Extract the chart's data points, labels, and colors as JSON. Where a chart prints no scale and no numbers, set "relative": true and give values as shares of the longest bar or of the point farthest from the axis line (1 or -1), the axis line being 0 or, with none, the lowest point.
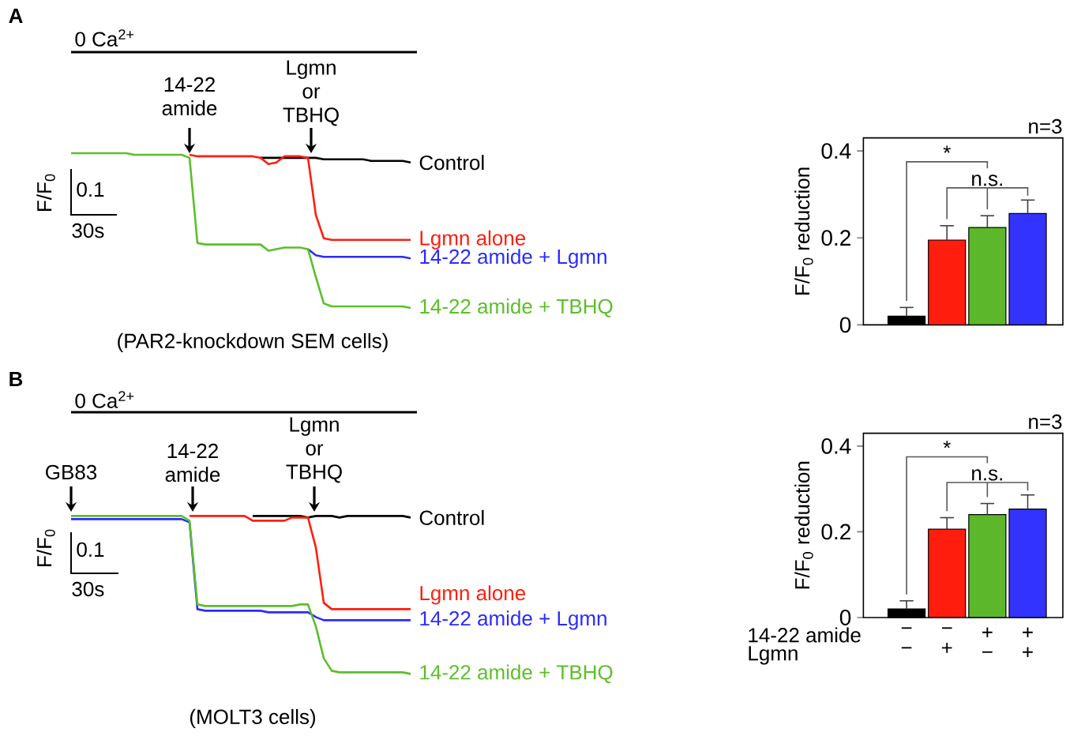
{
  "chart_data": [
    {
      "type": "line",
      "relative": true,
      "ylabel": "F/F$_{0}$",
      "categories": [
        null,
        null,
        null,
        null,
        null,
        null,
        null,
        null,
        null,
        null,
        null,
        null,
        null,
        null,
        null,
        null,
        null,
        null,
        null,
        null,
        null,
        null,
        null,
        null,
        null,
        null,
        null,
        null,
        null,
        null,
        null,
        null,
        null,
        null,
        null,
        null,
        null,
        null,
        null,
        null,
        null,
        null,
        null,
        null
      ],
      "series": [
        {
          "name": "Control",
          "color": "#000000",
          "values": [
            null,
            null,
            null,
            null,
            null,
            null,
            null,
            null,
            null,
            null,
            null,
            null,
            null,
            null,
            null,
            null,
            null,
            null,
            null,
            null,
            null,
            null,
            null,
            null,
            0.97,
            0.97,
            0.97,
            0.97,
            0.97,
            0.97,
            0.97,
            0.97,
            0.96,
            0.96,
            0.96,
            0.96,
            0.96,
            0.96,
            0.95,
            0.95,
            0.95,
            0.95,
            0.95,
            0.94
          ]
        },
        {
          "name": "Lgmn alone",
          "color": "#ff1e0e",
          "values": [
            null,
            null,
            null,
            null,
            null,
            null,
            null,
            null,
            null,
            null,
            null,
            null,
            null,
            null,
            null,
            0.99,
            0.98,
            0.98,
            0.98,
            0.98,
            0.98,
            0.98,
            0.98,
            0.98,
            0.97,
            0.93,
            0.94,
            0.98,
            0.98,
            0.98,
            0.97,
            0.6,
            0.45,
            0.44,
            0.44,
            0.44,
            0.44,
            0.44,
            0.44,
            0.44,
            0.44,
            0.44,
            0.44,
            0.44
          ]
        },
        {
          "name": "14-22 amide + Lgmn",
          "color": "#2b2bff",
          "values": [
            null,
            null,
            null,
            null,
            null,
            null,
            null,
            null,
            null,
            null,
            null,
            null,
            null,
            null,
            null,
            null,
            null,
            null,
            null,
            null,
            null,
            null,
            null,
            null,
            null,
            null,
            null,
            null,
            null,
            null,
            0.38,
            0.34,
            0.33,
            0.33,
            0.33,
            0.33,
            0.33,
            0.33,
            0.33,
            0.33,
            0.33,
            0.33,
            0.33,
            0.32
          ]
        },
        {
          "name": "14-22 amide + TBHQ",
          "color": "#5cbf2a",
          "values": [
            1,
            1,
            1,
            1,
            1,
            1,
            1,
            1,
            0.99,
            0.99,
            0.99,
            0.99,
            0.99,
            0.99,
            0.99,
            0.97,
            0.42,
            0.41,
            0.41,
            0.41,
            0.41,
            0.41,
            0.41,
            0.41,
            0.41,
            0.37,
            0.38,
            0.39,
            0.39,
            0.39,
            0.38,
            0.2,
            0.03,
            0.01,
            0.01,
            0.01,
            0.01,
            0.01,
            0.01,
            0.01,
            0.01,
            0.01,
            0.01,
            0
          ]
        }
      ],
      "annotations": [
        "A",
        "0 Ca$^{2+}$",
        "14-22 amide",
        "Lgmn or TBHQ",
        "0.1",
        "30s",
        "(PAR2-knockdown SEM cells)"
      ]
    },
    {
      "type": "bar",
      "ylabel": "F/F$_{0}$ reduction",
      "categories": [
        null,
        null,
        null,
        null
      ],
      "values": [
        0.02,
        0.195,
        0.224,
        0.256
      ],
      "colors": [
        "#000000",
        "#ff1e0e",
        "#5cb82a",
        "#3333ff"
      ],
      "errors": [
        [
          0.02,
          0.04
        ],
        [
          0.195,
          0.228
        ],
        [
          0.224,
          0.251
        ],
        [
          0.256,
          0.287
        ]
      ],
      "ylim": [
        0,
        0.43
      ],
      "yticks": [
        0,
        0.2,
        0.4
      ],
      "annotations": [
        "n=3",
        "*",
        "n.s."
      ]
    },
    {
      "type": "line",
      "relative": true,
      "ylabel": "F/F$_{0}$",
      "categories": [
        null,
        null,
        null,
        null,
        null,
        null,
        null,
        null,
        null,
        null,
        null,
        null,
        null,
        null,
        null,
        null,
        null,
        null,
        null,
        null,
        null,
        null,
        null,
        null,
        null,
        null,
        null,
        null,
        null,
        null,
        null,
        null,
        null,
        null,
        null,
        null,
        null,
        null,
        null,
        null,
        null,
        null,
        null,
        null
      ],
      "series": [
        {
          "name": "Control",
          "color": "#000000",
          "values": [
            null,
            null,
            null,
            null,
            null,
            null,
            null,
            null,
            null,
            null,
            null,
            null,
            null,
            null,
            null,
            null,
            null,
            null,
            null,
            null,
            null,
            null,
            null,
            1,
            1,
            1,
            1,
            1,
            1,
            1,
            0.99,
            1,
            1,
            1,
            0.99,
            1,
            1,
            1,
            1,
            1,
            1,
            1,
            1,
            0.99
          ]
        },
        {
          "name": "Lgmn alone",
          "color": "#ff1e0e",
          "values": [
            null,
            null,
            null,
            null,
            null,
            null,
            null,
            null,
            null,
            null,
            null,
            null,
            null,
            null,
            null,
            1,
            1,
            1,
            1,
            1,
            1,
            1,
            1,
            0.97,
            0.97,
            0.97,
            0.97,
            0.97,
            0.99,
            0.99,
            0.99,
            0.8,
            0.45,
            0.41,
            0.41,
            0.41,
            0.41,
            0.41,
            0.41,
            0.41,
            0.41,
            0.41,
            0.41,
            0.41
          ]
        },
        {
          "name": "14-22 amide + Lgmn",
          "color": "#2b2bff",
          "values": [
            0.98,
            0.98,
            0.98,
            0.98,
            0.98,
            0.98,
            0.98,
            0.98,
            0.98,
            0.98,
            0.98,
            0.98,
            0.98,
            0.98,
            0.98,
            0.96,
            0.41,
            0.4,
            0.4,
            0.4,
            0.4,
            0.4,
            0.4,
            0.4,
            0.4,
            0.39,
            0.39,
            0.39,
            0.39,
            0.39,
            0.39,
            0.36,
            0.34,
            0.34,
            0.34,
            0.34,
            0.34,
            0.34,
            0.34,
            0.34,
            0.34,
            0.34,
            0.34,
            0.34
          ]
        },
        {
          "name": "14-22 amide + TBHQ",
          "color": "#5cbf2a",
          "values": [
            1,
            1,
            1,
            1,
            1,
            1,
            1,
            1,
            1,
            1,
            1,
            1,
            1,
            1,
            1,
            0.97,
            0.44,
            0.43,
            0.43,
            0.43,
            0.43,
            0.43,
            0.43,
            0.43,
            0.43,
            0.43,
            0.43,
            0.43,
            0.43,
            0.44,
            0.44,
            0.3,
            0.1,
            0.02,
            0.01,
            0.01,
            0.01,
            0.01,
            0.01,
            0.01,
            0.01,
            0.01,
            0.01,
            0
          ]
        }
      ],
      "annotations": [
        "B",
        "0 Ca$^{2+}$",
        "GB83",
        "14-22 amide",
        "Lgmn or TBHQ",
        "0.1",
        "30s",
        "(MOLT3 cells)"
      ]
    },
    {
      "type": "bar",
      "ylabel": "F/F$_{0}$ reduction",
      "categories": [
        "− −",
        "− +",
        "+ −",
        "+ +"
      ],
      "values": [
        0.02,
        0.206,
        0.24,
        0.253
      ],
      "colors": [
        "#000000",
        "#ff1e0e",
        "#5cb82a",
        "#3333ff"
      ],
      "errors": [
        [
          0.02,
          0.039
        ],
        [
          0.206,
          0.233
        ],
        [
          0.24,
          0.266
        ],
        [
          0.253,
          0.286
        ]
      ],
      "ylim": [
        0,
        0.43
      ],
      "yticks": [
        0,
        0.2,
        0.4
      ],
      "annotations": [
        "n=3",
        "*",
        "n.s.",
        "14-22 amide",
        "Lgmn"
      ]
    }
  ]
}
